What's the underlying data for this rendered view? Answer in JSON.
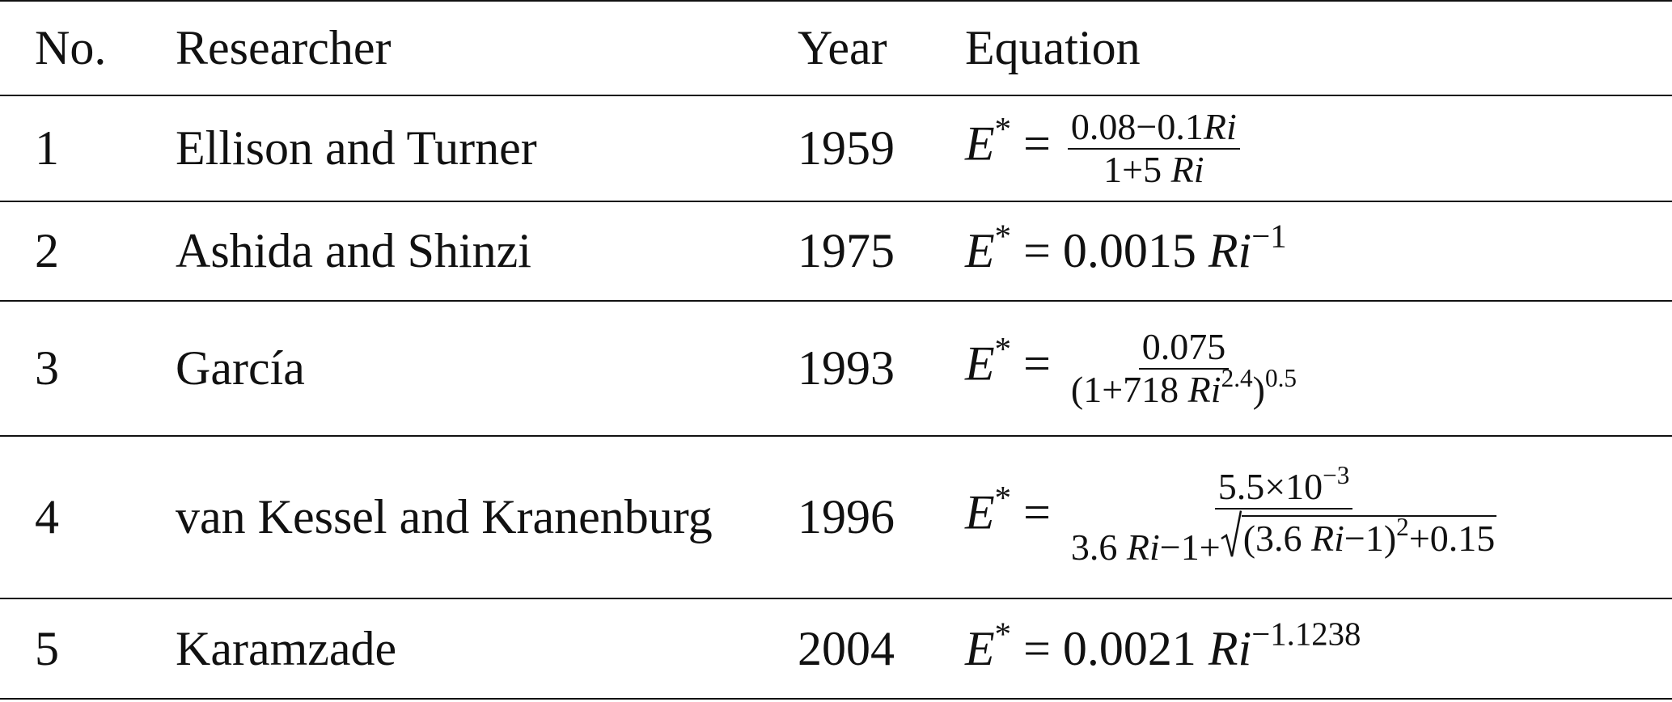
{
  "table": {
    "header": [
      "No.",
      "Researcher",
      "Year",
      "Equation"
    ],
    "rows": [
      {
        "no": 1,
        "researcher": "Ellison and Turner",
        "year": 1959,
        "equation": [
          {
            "i": "E"
          },
          {
            "sup": "*"
          },
          " = ",
          {
            "frac": [
              [
                "0.08−0.1",
                {
                  "i": "Ri"
                }
              ],
              [
                "1+5 ",
                {
                  "i": "Ri"
                }
              ]
            ]
          }
        ]
      },
      {
        "no": 2,
        "researcher": "Ashida and Shinzi",
        "year": 1975,
        "equation": [
          {
            "i": "E"
          },
          {
            "sup": "*"
          },
          " = 0.0015 ",
          {
            "i": "Ri"
          },
          {
            "sup": "−1"
          }
        ]
      },
      {
        "no": 3,
        "researcher": "García",
        "year": 1993,
        "equation": [
          {
            "i": "E"
          },
          {
            "sup": "*"
          },
          " = ",
          {
            "frac": [
              [
                "0.075"
              ],
              [
                "(1+718 ",
                {
                  "i": "Ri"
                },
                {
                  "sup": "2.4"
                },
                ")",
                {
                  "sup": "0.5"
                }
              ]
            ]
          }
        ]
      },
      {
        "no": 4,
        "researcher": "van Kessel and Kranenburg",
        "year": 1996,
        "equation": [
          {
            "i": "E"
          },
          {
            "sup": "*"
          },
          " = ",
          {
            "frac": [
              [
                "5.5×10",
                {
                  "sup": "−3"
                }
              ],
              [
                "3.6 ",
                {
                  "i": "Ri"
                },
                "−1+",
                {
                  "sqrt": [
                    "(3.6 ",
                    {
                      "i": "Ri"
                    },
                    "−1)",
                    {
                      "sup": "2"
                    },
                    "+0.15"
                  ]
                }
              ]
            ]
          }
        ]
      },
      {
        "no": 5,
        "researcher": "Karamzade",
        "year": 2004,
        "equation": [
          {
            "i": "E"
          },
          {
            "sup": "*"
          },
          " = 0.0021 ",
          {
            "i": "Ri"
          },
          {
            "sup": "−1.1238"
          }
        ]
      }
    ]
  }
}
